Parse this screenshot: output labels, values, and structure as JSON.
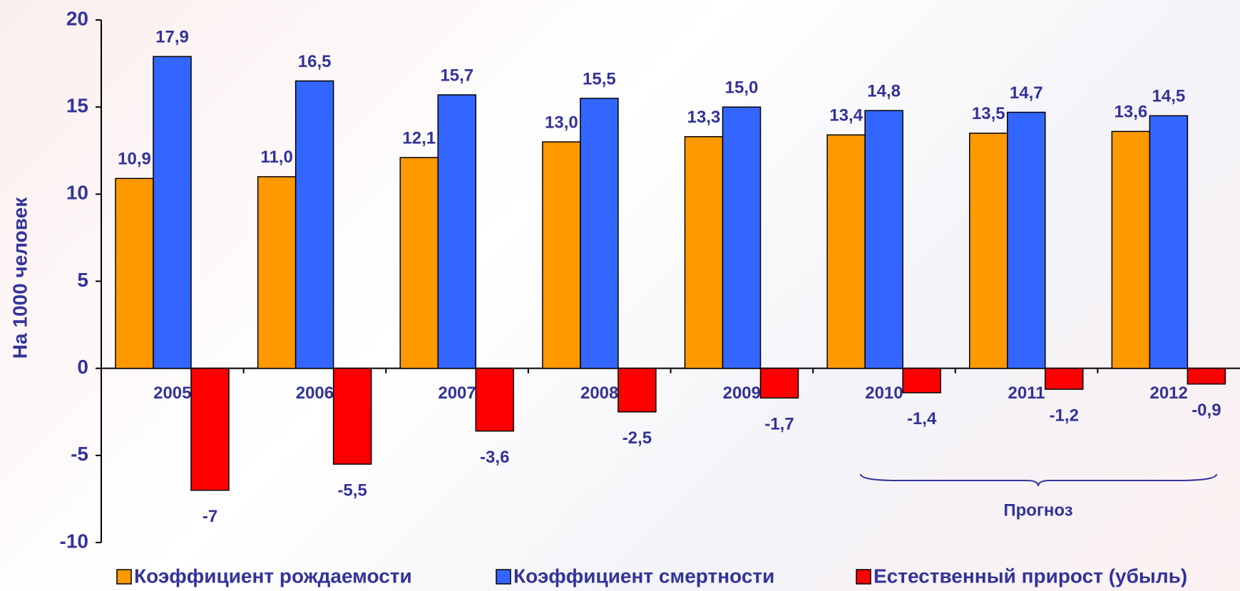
{
  "chart_data": {
    "type": "bar",
    "y_label": "На 1000 человек",
    "categories": [
      "2005",
      "2006",
      "2007",
      "2008",
      "2009",
      "2010",
      "2011",
      "2012"
    ],
    "series": [
      {
        "name": "Коэффициент рождаемости",
        "color": "#ff9900",
        "values": [
          10.9,
          11.0,
          12.1,
          13.0,
          13.3,
          13.4,
          13.5,
          13.6
        ],
        "value_labels": [
          "10,9",
          "11,0",
          "12,1",
          "13,0",
          "13,3",
          "13,4",
          "13,5",
          "13,6"
        ]
      },
      {
        "name": "Коэффициент смертности",
        "color": "#3366ff",
        "values": [
          17.9,
          16.5,
          15.7,
          15.5,
          15.0,
          14.8,
          14.7,
          14.5
        ],
        "value_labels": [
          "17,9",
          "16,5",
          "15,7",
          "15,5",
          "15,0",
          "14,8",
          "14,7",
          "14,5"
        ]
      },
      {
        "name": "Естественный прирост (убыль)",
        "color": "#ff0000",
        "values": [
          -7,
          -5.5,
          -3.6,
          -2.5,
          -1.7,
          -1.4,
          -1.2,
          -0.9
        ],
        "value_labels": [
          "-7",
          "-5,5",
          "-3,6",
          "-2,5",
          "-1,7",
          "-1,4",
          "-1,2",
          "-0,9"
        ]
      }
    ],
    "annotation": "Прогноз",
    "ylim": [
      -10,
      20
    ],
    "yticks": [
      -10,
      -5,
      0,
      5,
      10,
      15,
      20
    ],
    "grid": false
  }
}
